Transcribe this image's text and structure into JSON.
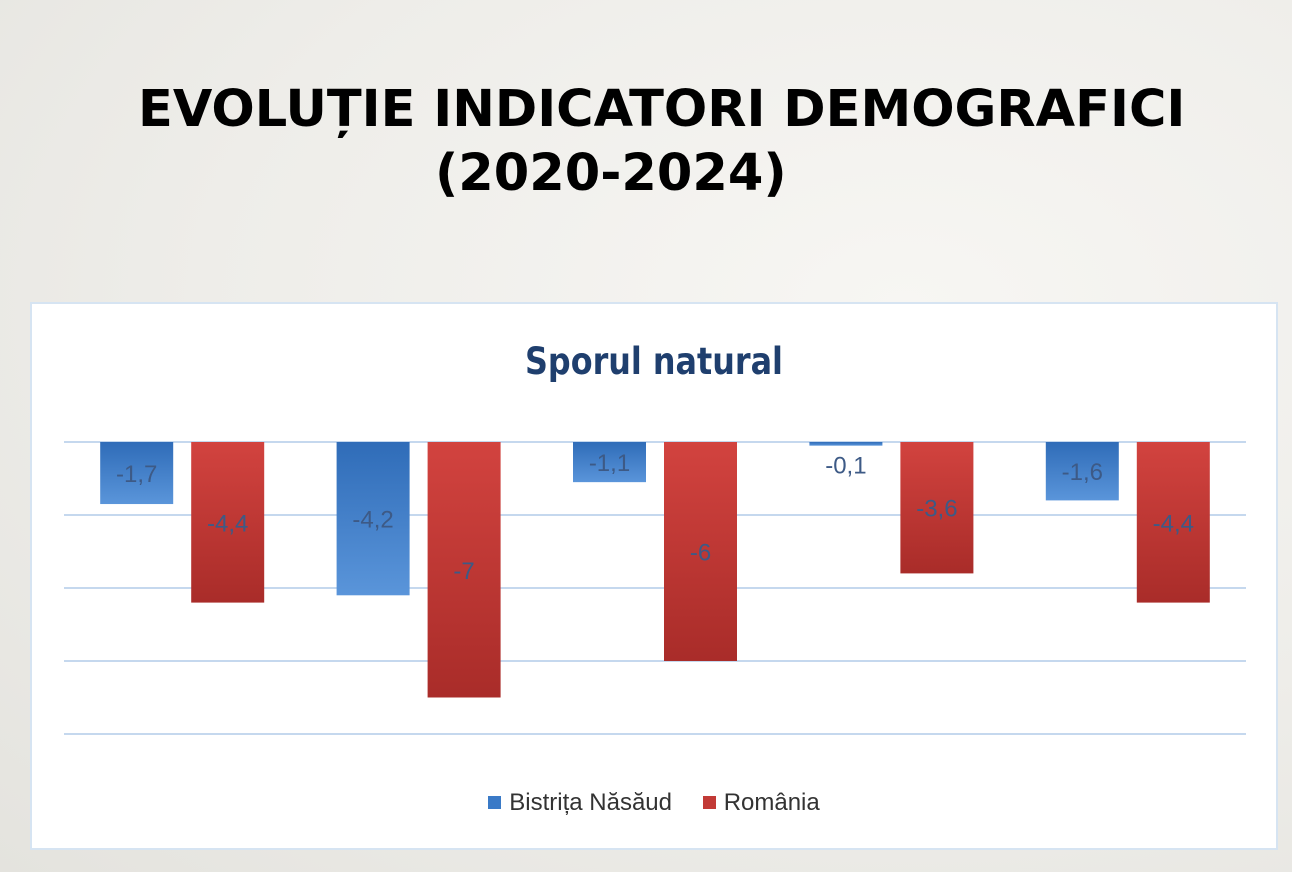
{
  "slide": {
    "title_line1": "EVOLUȚIE INDICATORI DEMOGRAFICI",
    "title_line2": "(2020-2024)"
  },
  "colors": {
    "series1": "#3a7ac7",
    "series2": "#c23a36",
    "gridline": "#c5d8ee",
    "label": "#3d5a86"
  },
  "chart_data": {
    "type": "bar",
    "title": "Sporul natural",
    "categories": [
      "",
      "",
      "",
      "",
      ""
    ],
    "series": [
      {
        "name": "Bistrița Năsăud",
        "values": [
          -1.7,
          -4.2,
          -1.1,
          -0.1,
          -1.6
        ],
        "labels": [
          "-1,7",
          "-4,2",
          "-1,1",
          "-0,1",
          "-1,6"
        ]
      },
      {
        "name": "România",
        "values": [
          -4.4,
          -7,
          -6,
          -3.6,
          -4.4
        ],
        "labels": [
          "-4,4",
          "-7",
          "-6",
          "-3,6",
          "-4,4"
        ]
      }
    ],
    "ylim": [
      -8,
      0
    ],
    "grid": true,
    "legend": "bottom"
  }
}
